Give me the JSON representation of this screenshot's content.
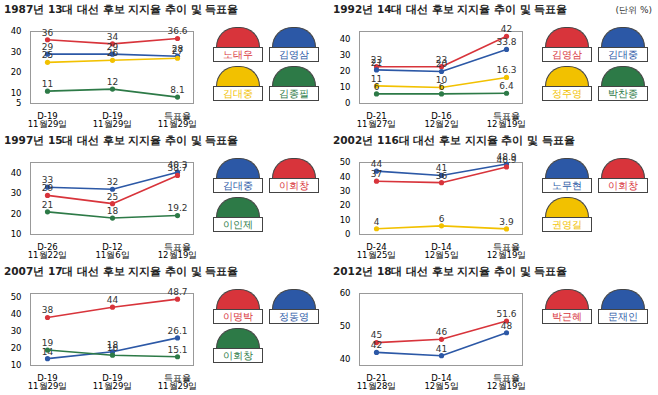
{
  "unit": "(단위 %)",
  "chart_data": [
    {
      "type": "line",
      "title": "1987년 13대 대선 후보 지지율 추이 및 득표율",
      "categories": [
        "D-19\n11월29일",
        "D-19\n11월29일",
        "득표율\n11월29일"
      ],
      "series": [
        {
          "name": "노태우",
          "color": "#d8343b",
          "values": [
            36,
            34,
            36.6
          ]
        },
        {
          "name": "김영삼",
          "color": "#2c58a6",
          "values": [
            29,
            29,
            28
          ]
        },
        {
          "name": "김대중",
          "color": "#f2c100",
          "values": [
            25,
            26,
            27
          ]
        },
        {
          "name": "김종필",
          "color": "#2d7a47",
          "values": [
            11,
            12,
            8.1
          ]
        }
      ],
      "ylim": [
        5,
        40
      ],
      "yticks": [
        5,
        10,
        20,
        30,
        40
      ],
      "data_labels": true,
      "grid": false,
      "legend": "right",
      "marker": "circle"
    },
    {
      "type": "line",
      "title": "1992년 14대 대선 후보 지지율 추이 및 득표율",
      "categories": [
        "D-21\n11월27일",
        "D-16\n12월2일",
        "득표율\n12월19일"
      ],
      "series": [
        {
          "name": "김영삼",
          "color": "#d8343b",
          "values": [
            23,
            23,
            42
          ]
        },
        {
          "name": "김대중",
          "color": "#2c58a6",
          "values": [
            21,
            20,
            33.8
          ]
        },
        {
          "name": "정주영",
          "color": "#f2c100",
          "values": [
            11,
            10,
            16.3
          ]
        },
        {
          "name": "박찬종",
          "color": "#2d7a47",
          "values": [
            6,
            6,
            6.4
          ]
        }
      ],
      "ylim": [
        0,
        45
      ],
      "yticks": [
        0,
        10,
        20,
        30,
        40
      ],
      "data_labels": true,
      "grid": false,
      "legend": "right",
      "marker": "circle"
    },
    {
      "type": "line",
      "title": "1997년 15대 대선 후보 지지율 추이 및 득표율",
      "categories": [
        "D-26\n11월22일",
        "D-12\n11월6일",
        "득표율\n12월19일"
      ],
      "series": [
        {
          "name": "김대중",
          "color": "#2c58a6",
          "values": [
            33,
            32,
            40.3
          ]
        },
        {
          "name": "이회창",
          "color": "#d8343b",
          "values": [
            29,
            25,
            38.7
          ]
        },
        {
          "name": "이인제",
          "color": "#2d7a47",
          "values": [
            21,
            18,
            19.2
          ]
        }
      ],
      "ylim": [
        10,
        45
      ],
      "yticks": [
        10,
        20,
        30,
        40
      ],
      "data_labels": true,
      "grid": false,
      "legend": "right",
      "marker": "circle"
    },
    {
      "type": "line",
      "title": "2002년 116대 대선 후보 지지율 추이 및 득표율",
      "categories": [
        "D-24\n11월25일",
        "D-14\n12월5일",
        "득표율\n12월19일"
      ],
      "series": [
        {
          "name": "노무현",
          "color": "#2c58a6",
          "values": [
            44,
            41,
            48.9
          ]
        },
        {
          "name": "이회창",
          "color": "#d8343b",
          "values": [
            37,
            36,
            46.9
          ]
        },
        {
          "name": "권영길",
          "color": "#f2c100",
          "values": [
            4,
            6,
            3.9
          ]
        }
      ],
      "ylim": [
        0,
        50
      ],
      "yticks": [
        0,
        10,
        20,
        30,
        40,
        50
      ],
      "data_labels": true,
      "grid": false,
      "legend": "right",
      "marker": "circle"
    },
    {
      "type": "line",
      "title": "2007년 17대 대선 후보 지지율 추이 및 득표율",
      "categories": [
        "D-19\n11월29일",
        "D-19\n11월29일",
        "득표율\n11월29일"
      ],
      "series": [
        {
          "name": "이명박",
          "color": "#d8343b",
          "values": [
            38,
            44,
            48.7
          ]
        },
        {
          "name": "정동영",
          "color": "#2c58a6",
          "values": [
            14,
            18,
            26.1
          ]
        },
        {
          "name": "이회창",
          "color": "#2d7a47",
          "values": [
            19,
            16,
            15.1
          ]
        }
      ],
      "ylim": [
        10,
        52
      ],
      "yticks": [
        10,
        20,
        30,
        40,
        50
      ],
      "data_labels": true,
      "grid": false,
      "legend": "right",
      "marker": "circle"
    },
    {
      "type": "line",
      "title": "2012년 18대 대선 후보 지지율 추이 및 득표율",
      "categories": [
        "D-21\n11월28일",
        "D-14\n12월5일",
        "득표율\n12월19일"
      ],
      "series": [
        {
          "name": "박근혜",
          "color": "#d8343b",
          "values": [
            45,
            46,
            51.6
          ]
        },
        {
          "name": "문재인",
          "color": "#2c58a6",
          "values": [
            42,
            41,
            48
          ]
        }
      ],
      "ylim": [
        38,
        60
      ],
      "yticks": [
        40,
        50,
        60
      ],
      "data_labels": true,
      "grid": false,
      "legend": "right",
      "marker": "circle"
    }
  ]
}
